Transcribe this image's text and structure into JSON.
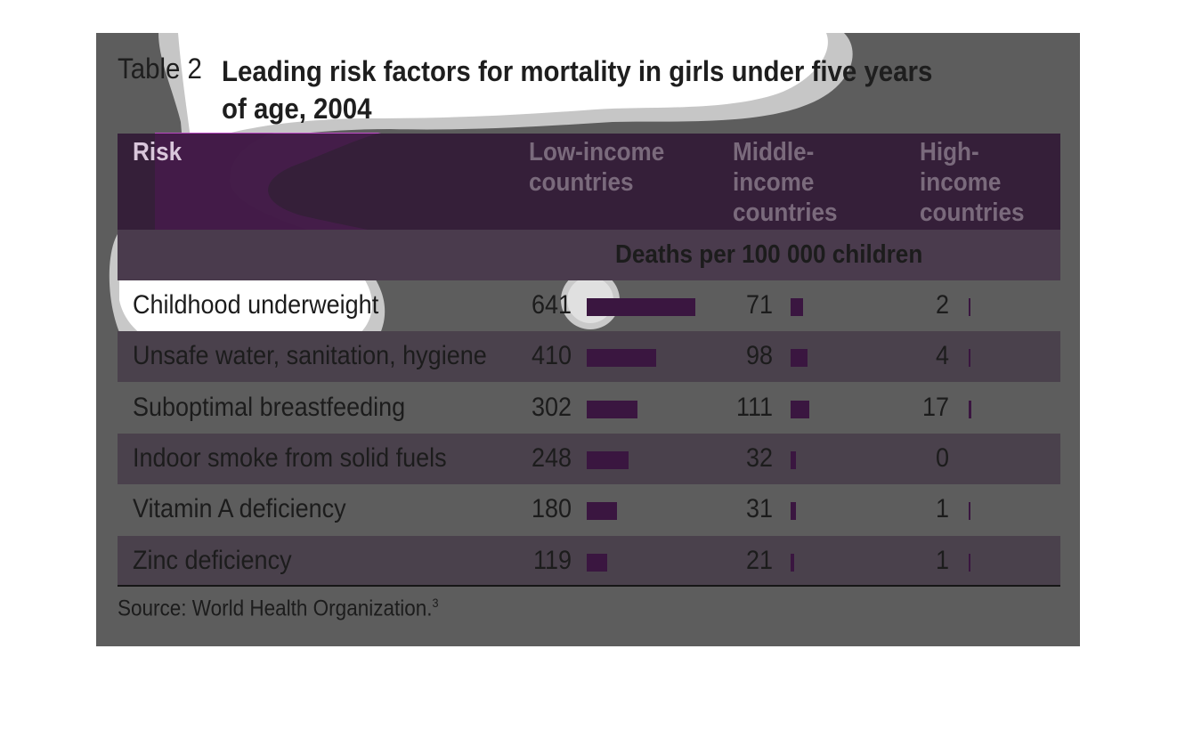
{
  "title": {
    "number": "Table 2",
    "text": "Leading risk factors for mortality in girls under five years of age, 2004"
  },
  "table": {
    "headers": {
      "risk": "Risk",
      "low": "Low-income countries",
      "middle": "Middle-income countries",
      "high": "High-income countries"
    },
    "unit": "Deaths per 100 000 children",
    "rows": [
      {
        "risk": "Childhood underweight",
        "low": "641",
        "middle": "71",
        "high": "2"
      },
      {
        "risk": "Unsafe water, sanitation, hygiene",
        "low": "410",
        "middle": "98",
        "high": "4"
      },
      {
        "risk": "Suboptimal breastfeeding",
        "low": "302",
        "middle": "111",
        "high": "17"
      },
      {
        "risk": "Indoor smoke from solid fuels",
        "low": "248",
        "middle": "32",
        "high": "0"
      },
      {
        "risk": "Vitamin A deficiency",
        "low": "180",
        "middle": "31",
        "high": "1"
      },
      {
        "risk": "Zinc deficiency",
        "low": "119",
        "middle": "21",
        "high": "1"
      }
    ]
  },
  "source": {
    "text": "Source: World Health Organization.",
    "ref": "3"
  },
  "colors": {
    "bar": "#3a1640",
    "header_bg": "#2e1432",
    "highlight_magenta": "#c050c8"
  }
}
